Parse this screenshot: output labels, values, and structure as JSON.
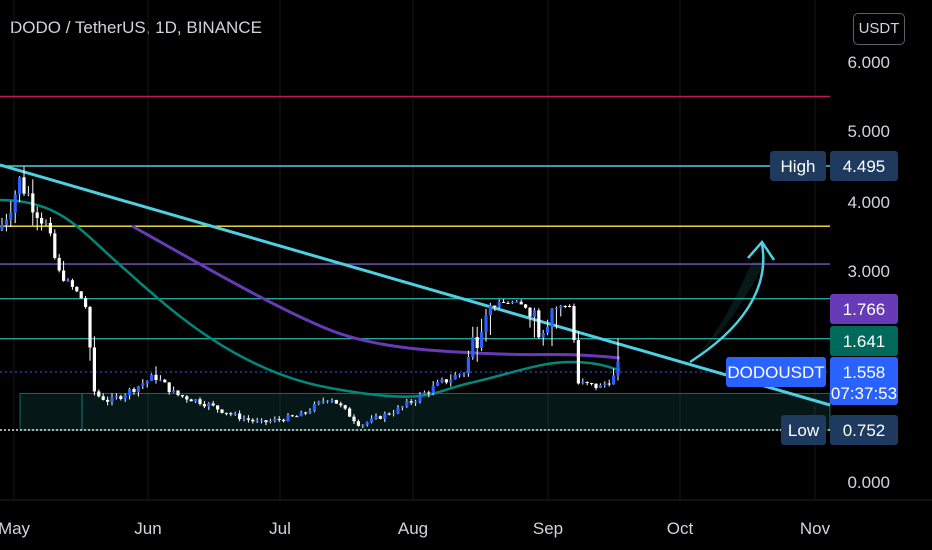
{
  "header": {
    "title": "DODO / TetherUS, 1D, BINANCE",
    "currency_button": "USDT"
  },
  "chart_data": {
    "type": "candlestick",
    "symbol": "DODOUSDT",
    "price_axis_ticks": [
      6.0,
      5.0,
      4.0,
      3.0,
      2.0,
      1.0,
      0.0
    ],
    "price_axis_labels": [
      "6.000",
      "5.000",
      "4.000",
      "3.000",
      "",
      "",
      "0.000"
    ],
    "time_axis_labels": [
      "May",
      "Jun",
      "Jul",
      "Aug",
      "Sep",
      "Oct",
      "Nov"
    ],
    "price_badges": [
      {
        "label": "High",
        "value": "4.495",
        "price": 4.495,
        "color": "#1e3a5f"
      },
      {
        "label": "",
        "value": "1.766",
        "price": 1.766,
        "color": "#673ab7"
      },
      {
        "label": "",
        "value": "1.641",
        "price": 1.641,
        "color": "#00695c"
      },
      {
        "label": "DODOUSDT",
        "value": "1.558",
        "sub": "07:37:53",
        "price": 1.558,
        "color": "#2962ff"
      },
      {
        "label": "Low",
        "value": "0.752",
        "price": 0.752,
        "color": "#1e3a5f"
      }
    ],
    "horizontal_levels": [
      {
        "price": 5.5,
        "color": "#c2185b"
      },
      {
        "price": 4.495,
        "color": "#4dd0e1"
      },
      {
        "price": 3.65,
        "color": "#ffeb3b"
      },
      {
        "price": 3.1,
        "color": "#7e57c2"
      },
      {
        "price": 2.1,
        "color": "#26a69a"
      },
      {
        "price": 1.65,
        "color": "#26a69a"
      },
      {
        "price": 0.752,
        "color": "#e0e0e0"
      }
    ],
    "support_zone": {
      "from": 0.752,
      "to": 1.26
    },
    "current_price": 1.558,
    "colors": {
      "up": "#26a69a",
      "down": "#ef5350",
      "candle": "#ffffff",
      "blue": "#2962ff"
    }
  }
}
